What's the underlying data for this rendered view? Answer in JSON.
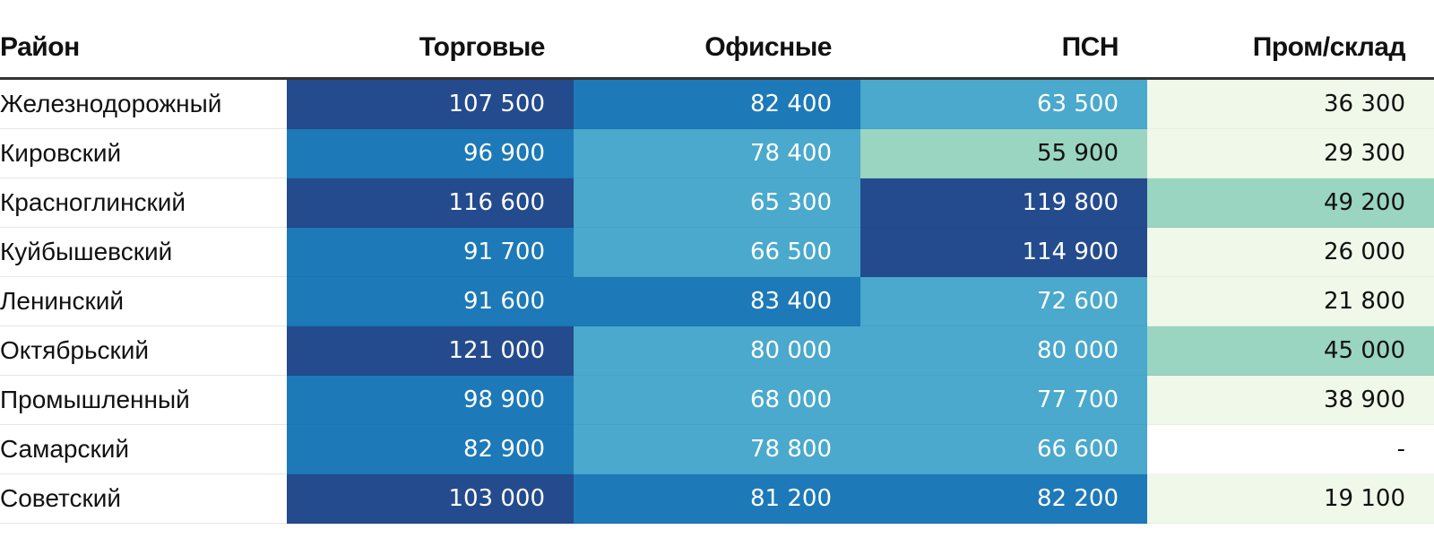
{
  "chart_data": {
    "type": "table",
    "title": "",
    "columns": [
      "Район",
      "Торговые",
      "Офисные",
      "ПСН",
      "Пром/склад"
    ],
    "rows": [
      {
        "district": "Железнодорожный",
        "values": [
          "107 500",
          "82 400",
          "63 500",
          "36 300"
        ],
        "levels": [
          4,
          3,
          2,
          0
        ]
      },
      {
        "district": "Кировский",
        "values": [
          "96 900",
          "78 400",
          "55 900",
          "29 300"
        ],
        "levels": [
          3,
          2,
          1,
          0
        ]
      },
      {
        "district": "Красноглинский",
        "values": [
          "116 600",
          "65 300",
          "119 800",
          "49 200"
        ],
        "levels": [
          4,
          2,
          4,
          1
        ]
      },
      {
        "district": "Куйбышевский",
        "values": [
          "91 700",
          "66 500",
          "114 900",
          "26 000"
        ],
        "levels": [
          3,
          2,
          4,
          0
        ]
      },
      {
        "district": "Ленинский",
        "values": [
          "91 600",
          "83 400",
          "72 600",
          "21 800"
        ],
        "levels": [
          3,
          3,
          2,
          0
        ]
      },
      {
        "district": "Октябрьский",
        "values": [
          "121 000",
          "80 000",
          "80 000",
          "45 000"
        ],
        "levels": [
          4,
          2,
          2,
          1
        ]
      },
      {
        "district": "Промышленный",
        "values": [
          "98 900",
          "68 000",
          "77 700",
          "38 900"
        ],
        "levels": [
          3,
          2,
          2,
          0
        ]
      },
      {
        "district": "Самарский",
        "values": [
          "82 900",
          "78 800",
          "66 600",
          "-"
        ],
        "levels": [
          3,
          2,
          2,
          -1
        ]
      },
      {
        "district": "Советский",
        "values": [
          "103 000",
          "81 200",
          "82 200",
          "19 100"
        ],
        "levels": [
          4,
          3,
          3,
          0
        ]
      }
    ],
    "color_scale": {
      "-1": {
        "bg": "#ffffff",
        "fg": "#111111"
      },
      "0": {
        "bg": "#eff8e9",
        "fg": "#111111"
      },
      "1": {
        "bg": "#99d5c1",
        "fg": "#111111"
      },
      "2": {
        "bg": "#4aa9cc",
        "fg": "#ffffff"
      },
      "3": {
        "bg": "#1d79b7",
        "fg": "#ffffff"
      },
      "4": {
        "bg": "#244b8d",
        "fg": "#ffffff"
      }
    }
  }
}
